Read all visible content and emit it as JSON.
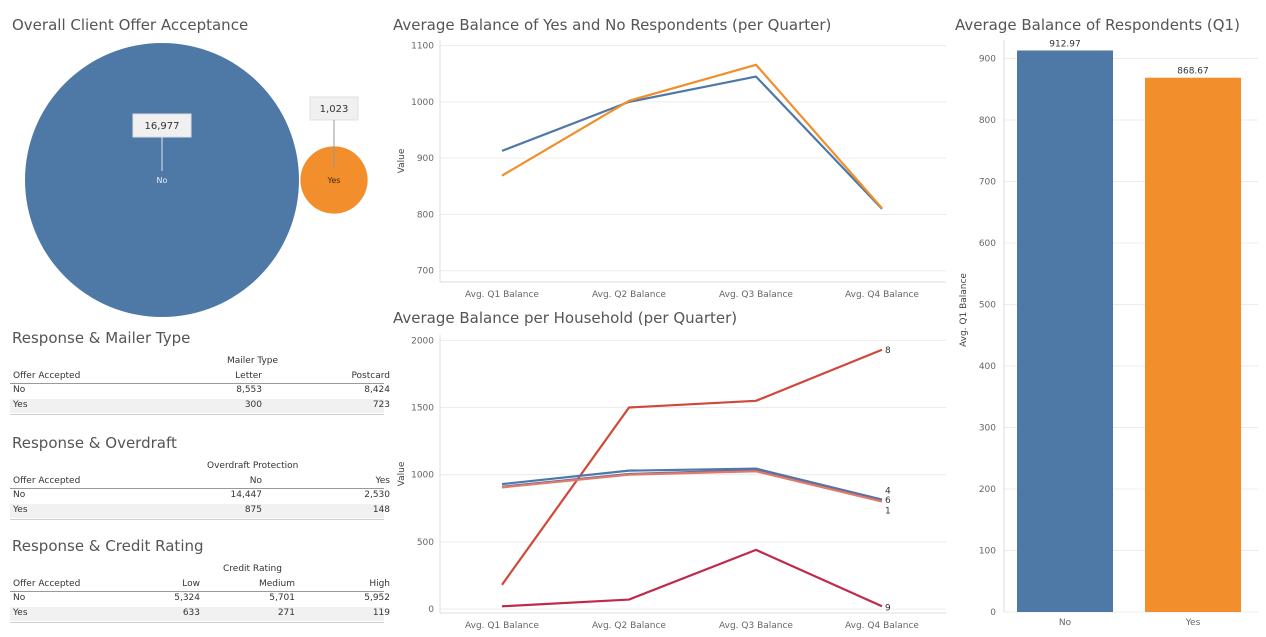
{
  "pie": {
    "title": "Overall Client Offer Acceptance",
    "slices": [
      {
        "label": "No",
        "value": 16977,
        "display": "16,977",
        "color": "#4e79a7"
      },
      {
        "label": "Yes",
        "value": 1023,
        "display": "1,023",
        "color": "#f28e2b"
      }
    ]
  },
  "tables": [
    {
      "title": "Response & Mailer Type",
      "group_header": "Mailer Type",
      "row_header": "Offer Accepted",
      "columns": [
        "Letter",
        "Postcard"
      ],
      "rows": [
        [
          "No",
          "8,553",
          "8,424"
        ],
        [
          "Yes",
          "300",
          "723"
        ]
      ]
    },
    {
      "title": "Response & Overdraft",
      "group_header": "Overdraft Protection",
      "row_header": "Offer Accepted",
      "columns": [
        "No",
        "Yes"
      ],
      "rows": [
        [
          "No",
          "14,447",
          "2,530"
        ],
        [
          "Yes",
          "875",
          "148"
        ]
      ]
    },
    {
      "title": "Response & Credit Rating",
      "group_header": "Credit Rating",
      "row_header": "Offer Accepted",
      "columns": [
        "Low",
        "Medium",
        "High"
      ],
      "rows": [
        [
          "No",
          "5,324",
          "5,701",
          "5,952"
        ],
        [
          "Yes",
          "633",
          "271",
          "119"
        ]
      ]
    }
  ],
  "chart_data": [
    {
      "type": "line",
      "title": "Average Balance of Yes and No Respondents (per Quarter)",
      "ylabel": "Value",
      "categories": [
        "Avg. Q1 Balance",
        "Avg. Q2 Balance",
        "Avg. Q3 Balance",
        "Avg. Q4 Balance"
      ],
      "yticks": [
        700,
        800,
        900,
        1000,
        1100
      ],
      "ylim": [
        680,
        1110
      ],
      "series": [
        {
          "values": [
            913,
            1000,
            1045,
            810
          ],
          "color": "#4e79a7"
        },
        {
          "values": [
            869,
            1002,
            1066,
            811
          ],
          "color": "#f28e2b"
        }
      ]
    },
    {
      "type": "line",
      "title": "Average Balance per Household (per Quarter)",
      "ylabel": "Value",
      "categories": [
        "Avg. Q1 Balance",
        "Avg. Q2 Balance",
        "Avg. Q3 Balance",
        "Avg. Q4 Balance"
      ],
      "yticks": [
        0,
        500,
        1000,
        1500,
        2000
      ],
      "ylim": [
        -30,
        2040
      ],
      "series": [
        {
          "name": "8",
          "values": [
            180,
            1500,
            1550,
            1930
          ],
          "color": "#d1483a"
        },
        {
          "name": "4",
          "values": [
            930,
            1030,
            1045,
            815
          ],
          "color": "#4e79a7"
        },
        {
          "name": "6",
          "values": [
            910,
            1005,
            1035,
            810
          ],
          "color": "#6a6aa0"
        },
        {
          "name": "1",
          "values": [
            905,
            1000,
            1025,
            800
          ],
          "color": "#e07b6a"
        },
        {
          "name": "9",
          "values": [
            20,
            70,
            440,
            20
          ],
          "color": "#c0294a"
        }
      ]
    },
    {
      "type": "bar",
      "title": "Average Balance of Respondents (Q1)",
      "ylabel": "Avg. Q1 Balance",
      "categories": [
        "No",
        "Yes"
      ],
      "values": [
        912.97,
        868.67
      ],
      "labels": [
        "912.97",
        "868.67"
      ],
      "colors": [
        "#4e79a7",
        "#f28e2b"
      ],
      "yticks": [
        0,
        100,
        200,
        300,
        400,
        500,
        600,
        700,
        800,
        900
      ],
      "ylim": [
        0,
        930
      ]
    }
  ]
}
